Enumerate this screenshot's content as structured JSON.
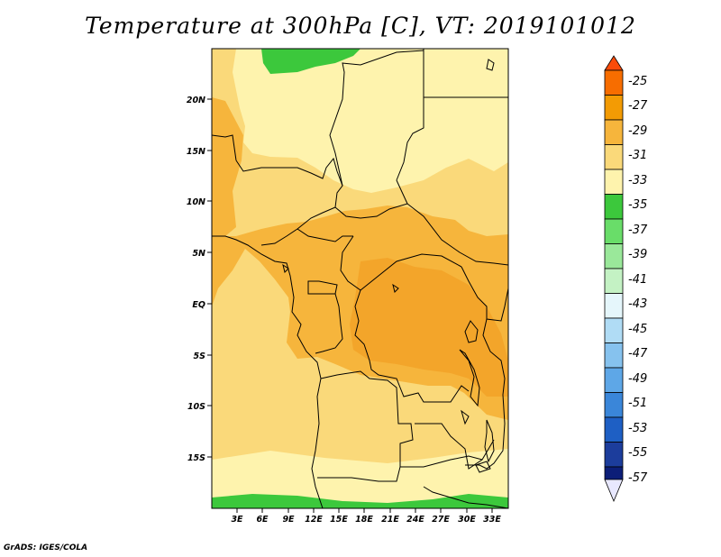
{
  "title": "Temperature at 300hPa [C], VT: 2019101012",
  "credit": "GrADS: IGES/COLA",
  "map": {
    "lat_labels": [
      "20N",
      "15N",
      "10N",
      "5N",
      "EQ",
      "5S",
      "10S",
      "15S"
    ],
    "lon_labels": [
      "3E",
      "6E",
      "9E",
      "12E",
      "15E",
      "18E",
      "21E",
      "24E",
      "27E",
      "30E",
      "33E"
    ]
  },
  "colorbar": {
    "labels": [
      "-25",
      "-27",
      "-29",
      "-31",
      "-33",
      "-35",
      "-37",
      "-39",
      "-41",
      "-43",
      "-45",
      "-47",
      "-49",
      "-51",
      "-53",
      "-55",
      "-57"
    ],
    "colors": [
      "#fa4b0a",
      "#f76d00",
      "#f39b04",
      "#f6b53c",
      "#fad97a",
      "#fef3ad",
      "#3cc83c",
      "#69dd69",
      "#9ae89a",
      "#c4f2c4",
      "#e5f6fb",
      "#b0dcf5",
      "#86c2ee",
      "#5ea7e7",
      "#3a86d9",
      "#1e5fc4",
      "#1c3d9c",
      "#0c1e78",
      "#e8e8ff"
    ]
  }
}
